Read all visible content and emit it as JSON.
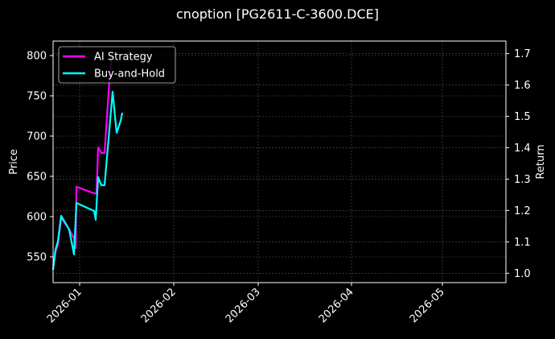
{
  "title": "cnoption [PG2611-C-3600.DCE]",
  "chart_data": {
    "type": "line",
    "title": "cnoption [PG2611-C-3600.DCE]",
    "xlabel": "",
    "ylabel": "Price",
    "ylabel_right": "Return",
    "ylim": [
      518,
      818
    ],
    "ylim_right": [
      0.97,
      1.74
    ],
    "x_ticks": [
      "2026-01",
      "2026-02",
      "2026-03",
      "2026-04",
      "2026-05"
    ],
    "y_ticks": [
      550,
      600,
      650,
      700,
      750,
      800
    ],
    "y_ticks_right": [
      1.0,
      1.1,
      1.2,
      1.3,
      1.4,
      1.5,
      1.6,
      1.7
    ],
    "grid": true,
    "legend_position": "upper left",
    "x": [
      "2025-12-22",
      "2025-12-23",
      "2025-12-24",
      "2025-12-25",
      "2025-12-29",
      "2025-12-30",
      "2025-12-31",
      "2026-01-01",
      "2026-01-06",
      "2026-01-07",
      "2026-01-08",
      "2026-01-09",
      "2026-01-10",
      "2026-01-13",
      "2026-01-14",
      "2026-01-15",
      "2026-01-16"
    ],
    "series": [
      {
        "name": "AI Strategy",
        "color": "#ff00ff",
        "axis": "right",
        "points": [
          [
            66,
            330
          ],
          [
            69,
            313
          ],
          [
            72,
            304
          ],
          [
            76,
            270
          ],
          [
            86,
            285
          ],
          [
            92,
            296
          ],
          [
            94,
            308
          ],
          [
            95,
            232
          ],
          [
            117,
            240
          ],
          [
            120,
            240
          ],
          [
            122,
            183
          ],
          [
            126,
            190
          ],
          [
            130,
            190
          ],
          [
            136,
            100
          ],
          [
            139,
            70
          ]
        ],
        "values": [
          1.02,
          1.06,
          1.09,
          1.17,
          1.14,
          1.11,
          1.08,
          1.27,
          1.25,
          1.25,
          1.4,
          1.38,
          1.38,
          1.61,
          1.69
        ]
      },
      {
        "name": "Buy-and-Hold",
        "color": "#00ffff",
        "axis": "left",
        "points": [
          [
            66,
            335
          ],
          [
            69,
            310
          ],
          [
            72,
            300
          ],
          [
            76,
            268
          ],
          [
            86,
            285
          ],
          [
            92,
            316
          ],
          [
            95,
            252
          ],
          [
            117,
            262
          ],
          [
            119,
            273
          ],
          [
            122,
            220
          ],
          [
            126,
            230
          ],
          [
            130,
            230
          ],
          [
            140,
            114
          ],
          [
            145,
            165
          ],
          [
            150,
            150
          ],
          [
            152,
            140
          ]
        ],
        "values": [
          535,
          560,
          570,
          601,
          584,
          553,
          617,
          607,
          596,
          649,
          639,
          639,
          755,
          704,
          719,
          729
        ]
      }
    ]
  },
  "legend": {
    "items": [
      {
        "label": "AI Strategy",
        "color": "#ff00ff"
      },
      {
        "label": "Buy-and-Hold",
        "color": "#00ffff"
      }
    ]
  },
  "axes": {
    "left_label": "Price",
    "right_label": "Return"
  }
}
